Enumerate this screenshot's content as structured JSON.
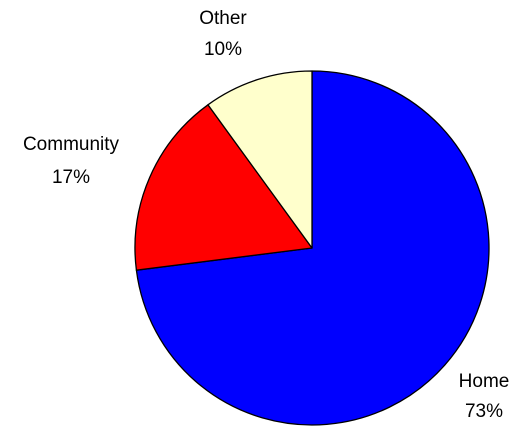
{
  "chart_data": {
    "type": "pie",
    "title": "",
    "slices": [
      {
        "category": "Home",
        "percent": "73%",
        "value": 73,
        "color": "#0000ff"
      },
      {
        "category": "Community",
        "percent": "17%",
        "value": 17,
        "color": "#ff0000"
      },
      {
        "category": "Other",
        "percent": "10%",
        "value": 10,
        "color": "#ffffcc"
      }
    ],
    "start_angle": "12 o'clock",
    "direction": "clockwise",
    "legend": "none",
    "labels": "outside"
  }
}
